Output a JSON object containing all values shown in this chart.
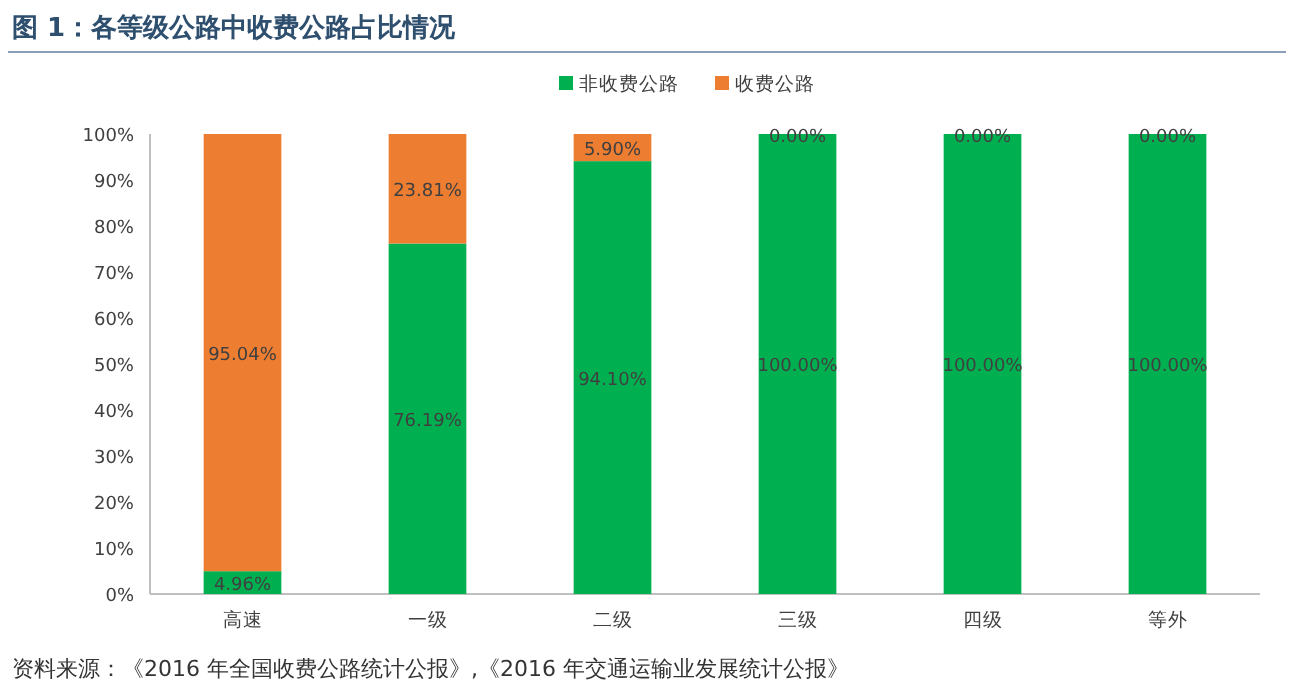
{
  "chart_data": {
    "type": "bar",
    "stacked": true,
    "title": "图 1：各等级公路中收费公路占比情况",
    "categories": [
      "高速",
      "一级",
      "二级",
      "三级",
      "四级",
      "等外"
    ],
    "series": [
      {
        "name": "非收费公路",
        "color": "#00b050",
        "values": [
          4.96,
          76.19,
          94.1,
          100.0,
          100.0,
          100.0
        ],
        "value_labels": [
          "4.96%",
          "76.19%",
          "94.10%",
          "100.00%",
          "100.00%",
          "100.00%"
        ]
      },
      {
        "name": "收费公路",
        "color": "#ed7d31",
        "values": [
          95.04,
          23.81,
          5.9,
          0.0,
          0.0,
          0.0
        ],
        "value_labels": [
          "95.04%",
          "23.81%",
          "5.90%",
          "0.00%",
          "0.00%",
          "0.00%"
        ]
      }
    ],
    "ylim": [
      0,
      100
    ],
    "yticks": [
      {
        "value": 0,
        "label": "0%"
      },
      {
        "value": 10,
        "label": "10%"
      },
      {
        "value": 20,
        "label": "20%"
      },
      {
        "value": 30,
        "label": "30%"
      },
      {
        "value": 40,
        "label": "40%"
      },
      {
        "value": 50,
        "label": "50%"
      },
      {
        "value": 60,
        "label": "60%"
      },
      {
        "value": 70,
        "label": "70%"
      },
      {
        "value": 80,
        "label": "80%"
      },
      {
        "value": 90,
        "label": "90%"
      },
      {
        "value": 100,
        "label": "100%"
      }
    ],
    "legend": "top",
    "annotations": [
      "资料来源：《2016 年全国收费公路统计公报》,《2016 年交通运输业发展统计公报》"
    ]
  }
}
